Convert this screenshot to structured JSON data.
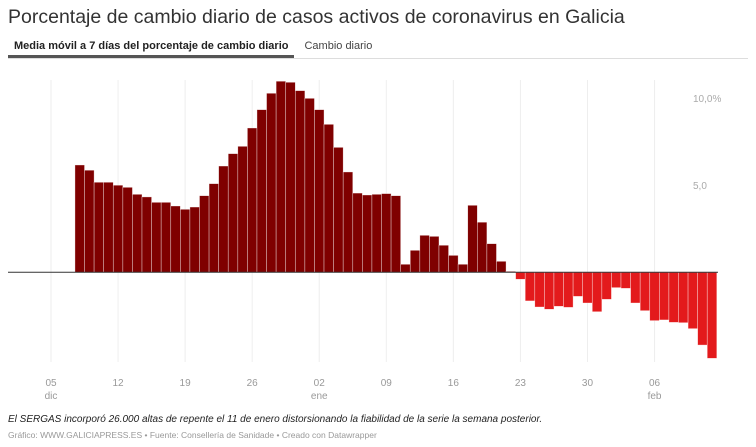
{
  "title": "Porcentaje de cambio diario de casos activos de coronavirus en Galicia",
  "tabs": [
    {
      "label": "Media móvil a 7 días del porcentaje de cambio diario",
      "active": true
    },
    {
      "label": "Cambio diario",
      "active": false
    }
  ],
  "note": "El SERGAS incorporó 26.000 altas de repente el 11 de enero distorsionando la fiabilidad de la serie la semana posterior.",
  "credit": "Gráfico: WWW.GALICIAPRESS.ES • Fuente: Consellería de Sanidade • Creado con Datawrapper",
  "colors": {
    "positive": "#7f0000",
    "negative": "#e31a1c",
    "zero_line": "#333333",
    "grid": "#eeeeee"
  },
  "chart_data": {
    "type": "bar",
    "title": "",
    "xlabel": "",
    "ylabel": "",
    "ylim": [
      -5.2,
      11.1
    ],
    "grid": "vertical",
    "y_ticks": [
      {
        "value": 10,
        "label": "10,0%"
      },
      {
        "value": 5,
        "label": "5,0"
      }
    ],
    "x_ticks": [
      {
        "date": "2020-12-05",
        "label": "05",
        "month": "dic"
      },
      {
        "date": "2020-12-12",
        "label": "12",
        "month": ""
      },
      {
        "date": "2020-12-19",
        "label": "19",
        "month": ""
      },
      {
        "date": "2020-12-26",
        "label": "26",
        "month": ""
      },
      {
        "date": "2021-01-02",
        "label": "02",
        "month": "ene"
      },
      {
        "date": "2021-01-09",
        "label": "09",
        "month": ""
      },
      {
        "date": "2021-01-16",
        "label": "16",
        "month": ""
      },
      {
        "date": "2021-01-23",
        "label": "23",
        "month": ""
      },
      {
        "date": "2021-01-30",
        "label": "30",
        "month": ""
      },
      {
        "date": "2021-02-06",
        "label": "06",
        "month": "feb"
      }
    ],
    "x": [
      "2020-12-08",
      "2020-12-09",
      "2020-12-10",
      "2020-12-11",
      "2020-12-12",
      "2020-12-13",
      "2020-12-14",
      "2020-12-15",
      "2020-12-16",
      "2020-12-17",
      "2020-12-18",
      "2020-12-19",
      "2020-12-20",
      "2020-12-21",
      "2020-12-22",
      "2020-12-23",
      "2020-12-24",
      "2020-12-25",
      "2020-12-26",
      "2020-12-27",
      "2020-12-28",
      "2020-12-29",
      "2020-12-30",
      "2020-12-31",
      "2021-01-01",
      "2021-01-02",
      "2021-01-03",
      "2021-01-04",
      "2021-01-05",
      "2021-01-06",
      "2021-01-07",
      "2021-01-08",
      "2021-01-09",
      "2021-01-10",
      "2021-01-11",
      "2021-01-12",
      "2021-01-13",
      "2021-01-14",
      "2021-01-15",
      "2021-01-16",
      "2021-01-17",
      "2021-01-18",
      "2021-01-19",
      "2021-01-20",
      "2021-01-21",
      "2021-01-22",
      "2021-01-23",
      "2021-01-24",
      "2021-01-25",
      "2021-01-26",
      "2021-01-27",
      "2021-01-28",
      "2021-01-29",
      "2021-01-30",
      "2021-01-31",
      "2021-02-01",
      "2021-02-02",
      "2021-02-03",
      "2021-02-04",
      "2021-02-05",
      "2021-02-06",
      "2021-02-07",
      "2021-02-08",
      "2021-02-09",
      "2021-02-10",
      "2021-02-11",
      "2021-02-12"
    ],
    "values": [
      6.15,
      5.85,
      5.16,
      5.16,
      4.99,
      4.87,
      4.47,
      4.32,
      4.01,
      4.01,
      3.8,
      3.61,
      3.74,
      4.39,
      5.08,
      6.09,
      6.8,
      7.22,
      8.27,
      9.32,
      10.26,
      10.95,
      10.89,
      10.41,
      9.97,
      9.32,
      8.48,
      7.16,
      5.75,
      4.54,
      4.43,
      4.47,
      4.51,
      4.39,
      0.46,
      1.26,
      2.12,
      2.06,
      1.55,
      0.97,
      0.46,
      3.84,
      2.87,
      1.64,
      0.63,
      0.05,
      -0.4,
      -1.64,
      -1.99,
      -2.12,
      -1.95,
      -2.01,
      -1.38,
      -1.76,
      -2.26,
      -1.55,
      -0.88,
      -0.92,
      -1.76,
      -2.2,
      -2.77,
      -2.73,
      -2.87,
      -2.89,
      -3.23,
      -4.17,
      -4.93
    ]
  }
}
